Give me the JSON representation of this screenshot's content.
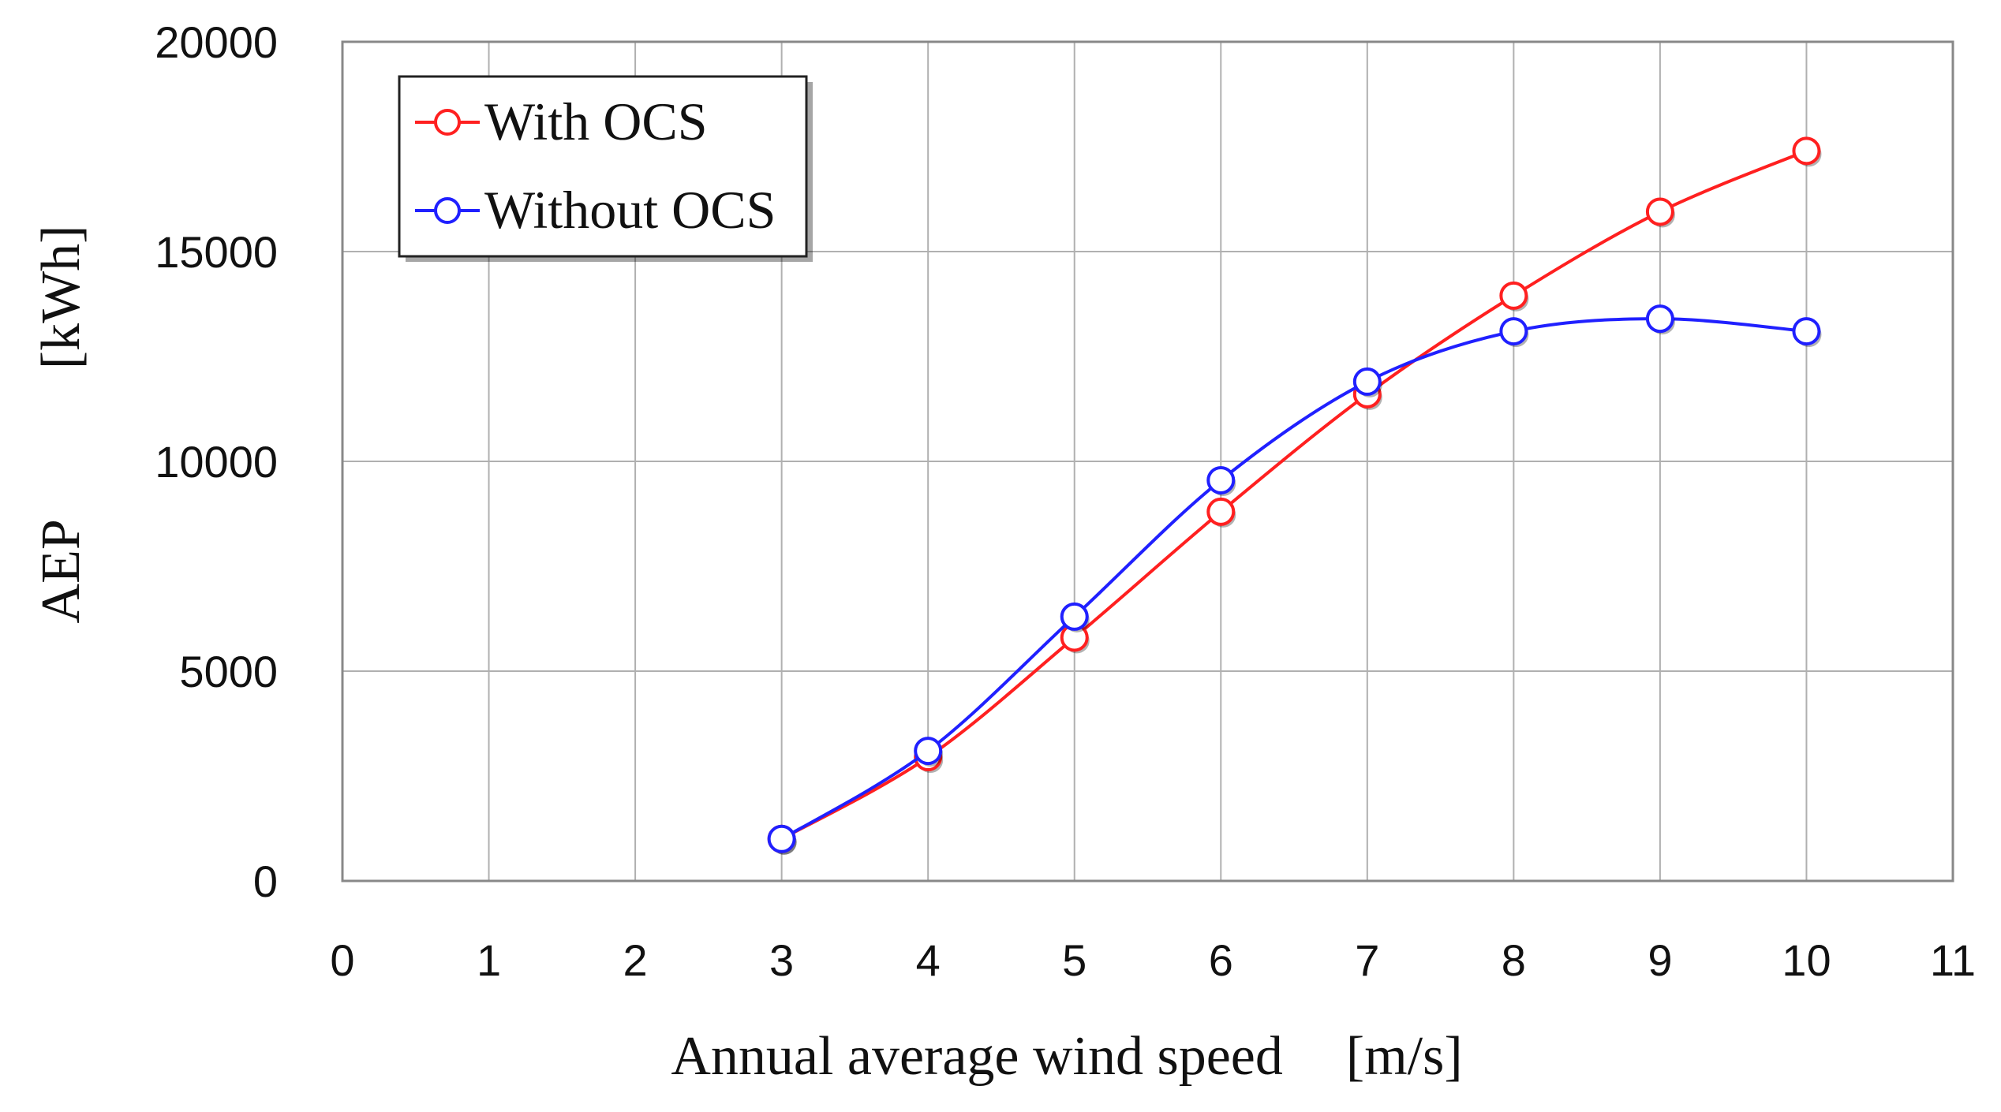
{
  "chart_data": {
    "type": "line",
    "title": "",
    "xlabel": "Annual average wind speed",
    "xlabel_unit": "[m/s]",
    "ylabel": "AEP",
    "ylabel_unit": "[kWh]",
    "xlim": [
      0,
      11
    ],
    "ylim": [
      0,
      20000
    ],
    "xticks": [
      "0",
      "1",
      "2",
      "3",
      "4",
      "5",
      "6",
      "7",
      "8",
      "9",
      "10",
      "11"
    ],
    "yticks": [
      "0",
      "5000",
      "10000",
      "15000",
      "20000"
    ],
    "grid": true,
    "legend_position": "top-left",
    "x": [
      3,
      4,
      5,
      6,
      7,
      8,
      9,
      10
    ],
    "series": [
      {
        "name": "With OCS",
        "color": "#ff2020",
        "values": [
          1000,
          2950,
          5800,
          8800,
          11600,
          13950,
          15950,
          17400
        ]
      },
      {
        "name": "Without OCS",
        "color": "#2020ff",
        "values": [
          1000,
          3100,
          6300,
          9550,
          11900,
          13100,
          13400,
          13100
        ]
      }
    ]
  }
}
